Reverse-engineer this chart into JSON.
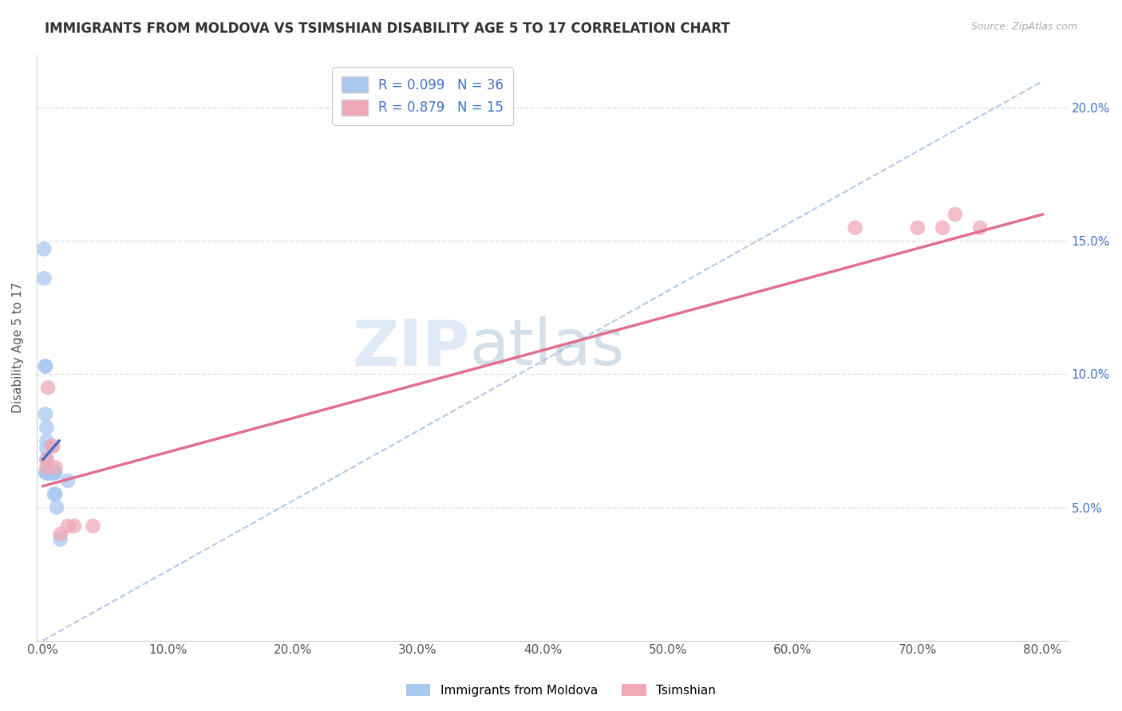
{
  "title": "IMMIGRANTS FROM MOLDOVA VS TSIMSHIAN DISABILITY AGE 5 TO 17 CORRELATION CHART",
  "source": "Source: ZipAtlas.com",
  "ylabel": "Disability Age 5 to 17",
  "xlim": [
    -0.005,
    0.82
  ],
  "ylim": [
    0.0,
    0.22
  ],
  "yticks": [
    0.05,
    0.1,
    0.15,
    0.2
  ],
  "ytick_labels": [
    "5.0%",
    "10.0%",
    "15.0%",
    "20.0%"
  ],
  "xticks": [
    0.0,
    0.1,
    0.2,
    0.3,
    0.4,
    0.5,
    0.6,
    0.7,
    0.8
  ],
  "xtick_labels": [
    "0.0%",
    "10.0%",
    "20.0%",
    "30.0%",
    "40.0%",
    "50.0%",
    "60.0%",
    "70.0%",
    "80.0%"
  ],
  "moldova_color": "#a8c8f0",
  "tsimshian_color": "#f0a8b8",
  "moldova_line_color": "#4472c4",
  "tsimshian_line_color": "#e07090",
  "dashed_line_color": "#b0c8e8",
  "moldova_R": 0.099,
  "moldova_N": 36,
  "tsimshian_R": 0.879,
  "tsimshian_N": 15,
  "legend_label1": "Immigrants from Moldova",
  "legend_label2": "Tsimshian",
  "watermark": "ZIPatlas",
  "moldova_scatter_x": [
    0.001,
    0.001,
    0.002,
    0.002,
    0.002,
    0.002,
    0.003,
    0.003,
    0.003,
    0.003,
    0.003,
    0.004,
    0.004,
    0.004,
    0.004,
    0.004,
    0.004,
    0.005,
    0.005,
    0.005,
    0.005,
    0.006,
    0.006,
    0.006,
    0.007,
    0.007,
    0.008,
    0.008,
    0.009,
    0.009,
    0.009,
    0.01,
    0.01,
    0.011,
    0.014,
    0.02
  ],
  "moldova_scatter_y": [
    0.147,
    0.136,
    0.103,
    0.103,
    0.085,
    0.063,
    0.08,
    0.075,
    0.072,
    0.068,
    0.063,
    0.063,
    0.063,
    0.063,
    0.063,
    0.063,
    0.063,
    0.063,
    0.063,
    0.063,
    0.063,
    0.063,
    0.063,
    0.063,
    0.063,
    0.063,
    0.063,
    0.063,
    0.063,
    0.063,
    0.055,
    0.055,
    0.063,
    0.05,
    0.038,
    0.06
  ],
  "tsimshian_scatter_x": [
    0.003,
    0.003,
    0.004,
    0.007,
    0.008,
    0.01,
    0.014,
    0.02,
    0.025,
    0.04,
    0.65,
    0.7,
    0.72,
    0.73,
    0.75
  ],
  "tsimshian_scatter_y": [
    0.068,
    0.065,
    0.095,
    0.073,
    0.073,
    0.065,
    0.04,
    0.043,
    0.043,
    0.043,
    0.155,
    0.155,
    0.155,
    0.16,
    0.155
  ],
  "moldova_line_x": [
    0.0,
    0.013
  ],
  "moldova_line_y": [
    0.068,
    0.075
  ],
  "tsimshian_line_x": [
    0.0,
    0.8
  ],
  "tsimshian_line_y": [
    0.058,
    0.16
  ],
  "dashed_line_x": [
    0.0,
    0.8
  ],
  "dashed_line_y": [
    0.0,
    0.21
  ],
  "background_color": "#ffffff",
  "grid_color": "#e0e0e8",
  "tick_color": "#4472c4",
  "title_fontsize": 12,
  "axis_label_fontsize": 11,
  "tick_fontsize": 11
}
